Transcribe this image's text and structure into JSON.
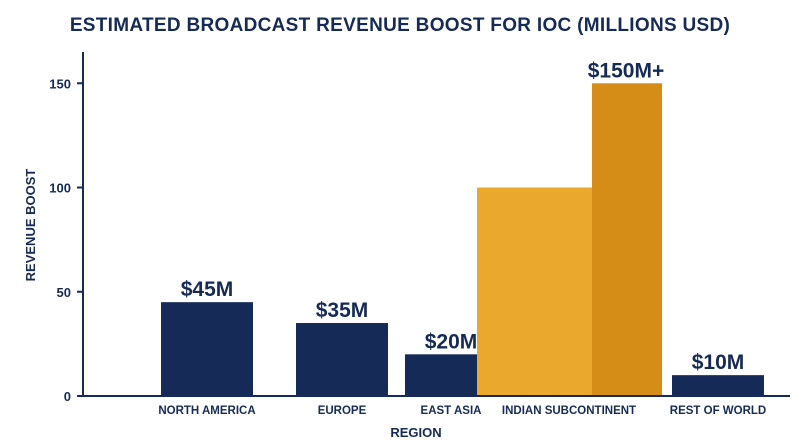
{
  "chart_data": {
    "type": "bar",
    "title": "ESTIMATED BROADCAST REVENUE BOOST FOR IOC (MILLIONS USD)",
    "xlabel": "REGION",
    "ylabel": "REVENUE BOOST",
    "ylim": [
      0,
      165
    ],
    "yticks": [
      "0",
      "50",
      "100",
      "150"
    ],
    "grid": false,
    "categories": [
      "NORTH AMERICA",
      "EUROPE",
      "EAST ASIA",
      "INDIAN SUBCONTINENT",
      "REST OF WORLD"
    ],
    "values": [
      45,
      35,
      20,
      150,
      10
    ],
    "data_labels": [
      "$45M",
      "$35M",
      "$20M",
      "$150M+",
      "$10M"
    ],
    "highlight_category": "INDIAN SUBCONTINENT",
    "highlight_base_value": 100,
    "colors": {
      "bar": "#152a57",
      "highlight_light": "#eaa92c",
      "highlight_dark": "#d58d18",
      "text": "#152a57",
      "axis": "#152a57"
    }
  }
}
